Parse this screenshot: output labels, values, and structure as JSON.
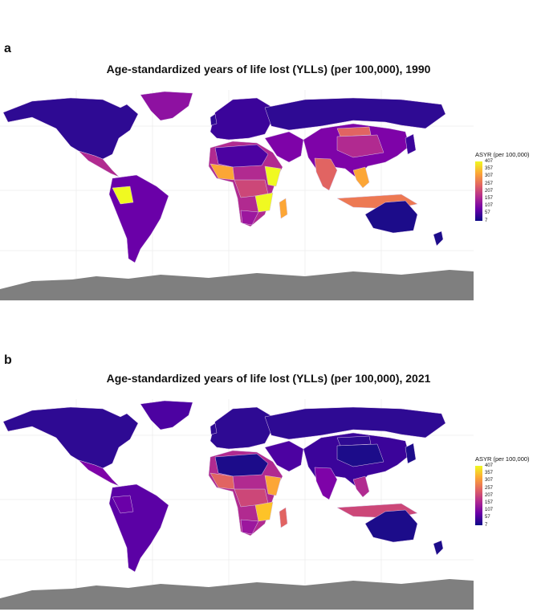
{
  "panels": [
    {
      "letter": "a",
      "title": "Age-standardized years of life lost (YLLs) (per 100,000), 1990",
      "legend": {
        "title": "ASYR (per 100,000)",
        "ticks": [
          "407",
          "357",
          "307",
          "257",
          "207",
          "157",
          "107",
          "57",
          "7"
        ]
      }
    },
    {
      "letter": "b",
      "title": "Age-standardized years of life lost (YLLs) (per 100,000), 2021",
      "legend": {
        "title": "ASYR (per 100,000)",
        "ticks": [
          "407",
          "357",
          "307",
          "257",
          "207",
          "157",
          "107",
          "57",
          "7"
        ]
      }
    }
  ],
  "colors": {
    "scale_low": "#0d0887",
    "scale_mid": "#b12a90",
    "scale_high": "#f0f921",
    "no_data": "#7f7f7f",
    "grid": "#e6e6e6",
    "border": "#d7c3e6"
  }
}
